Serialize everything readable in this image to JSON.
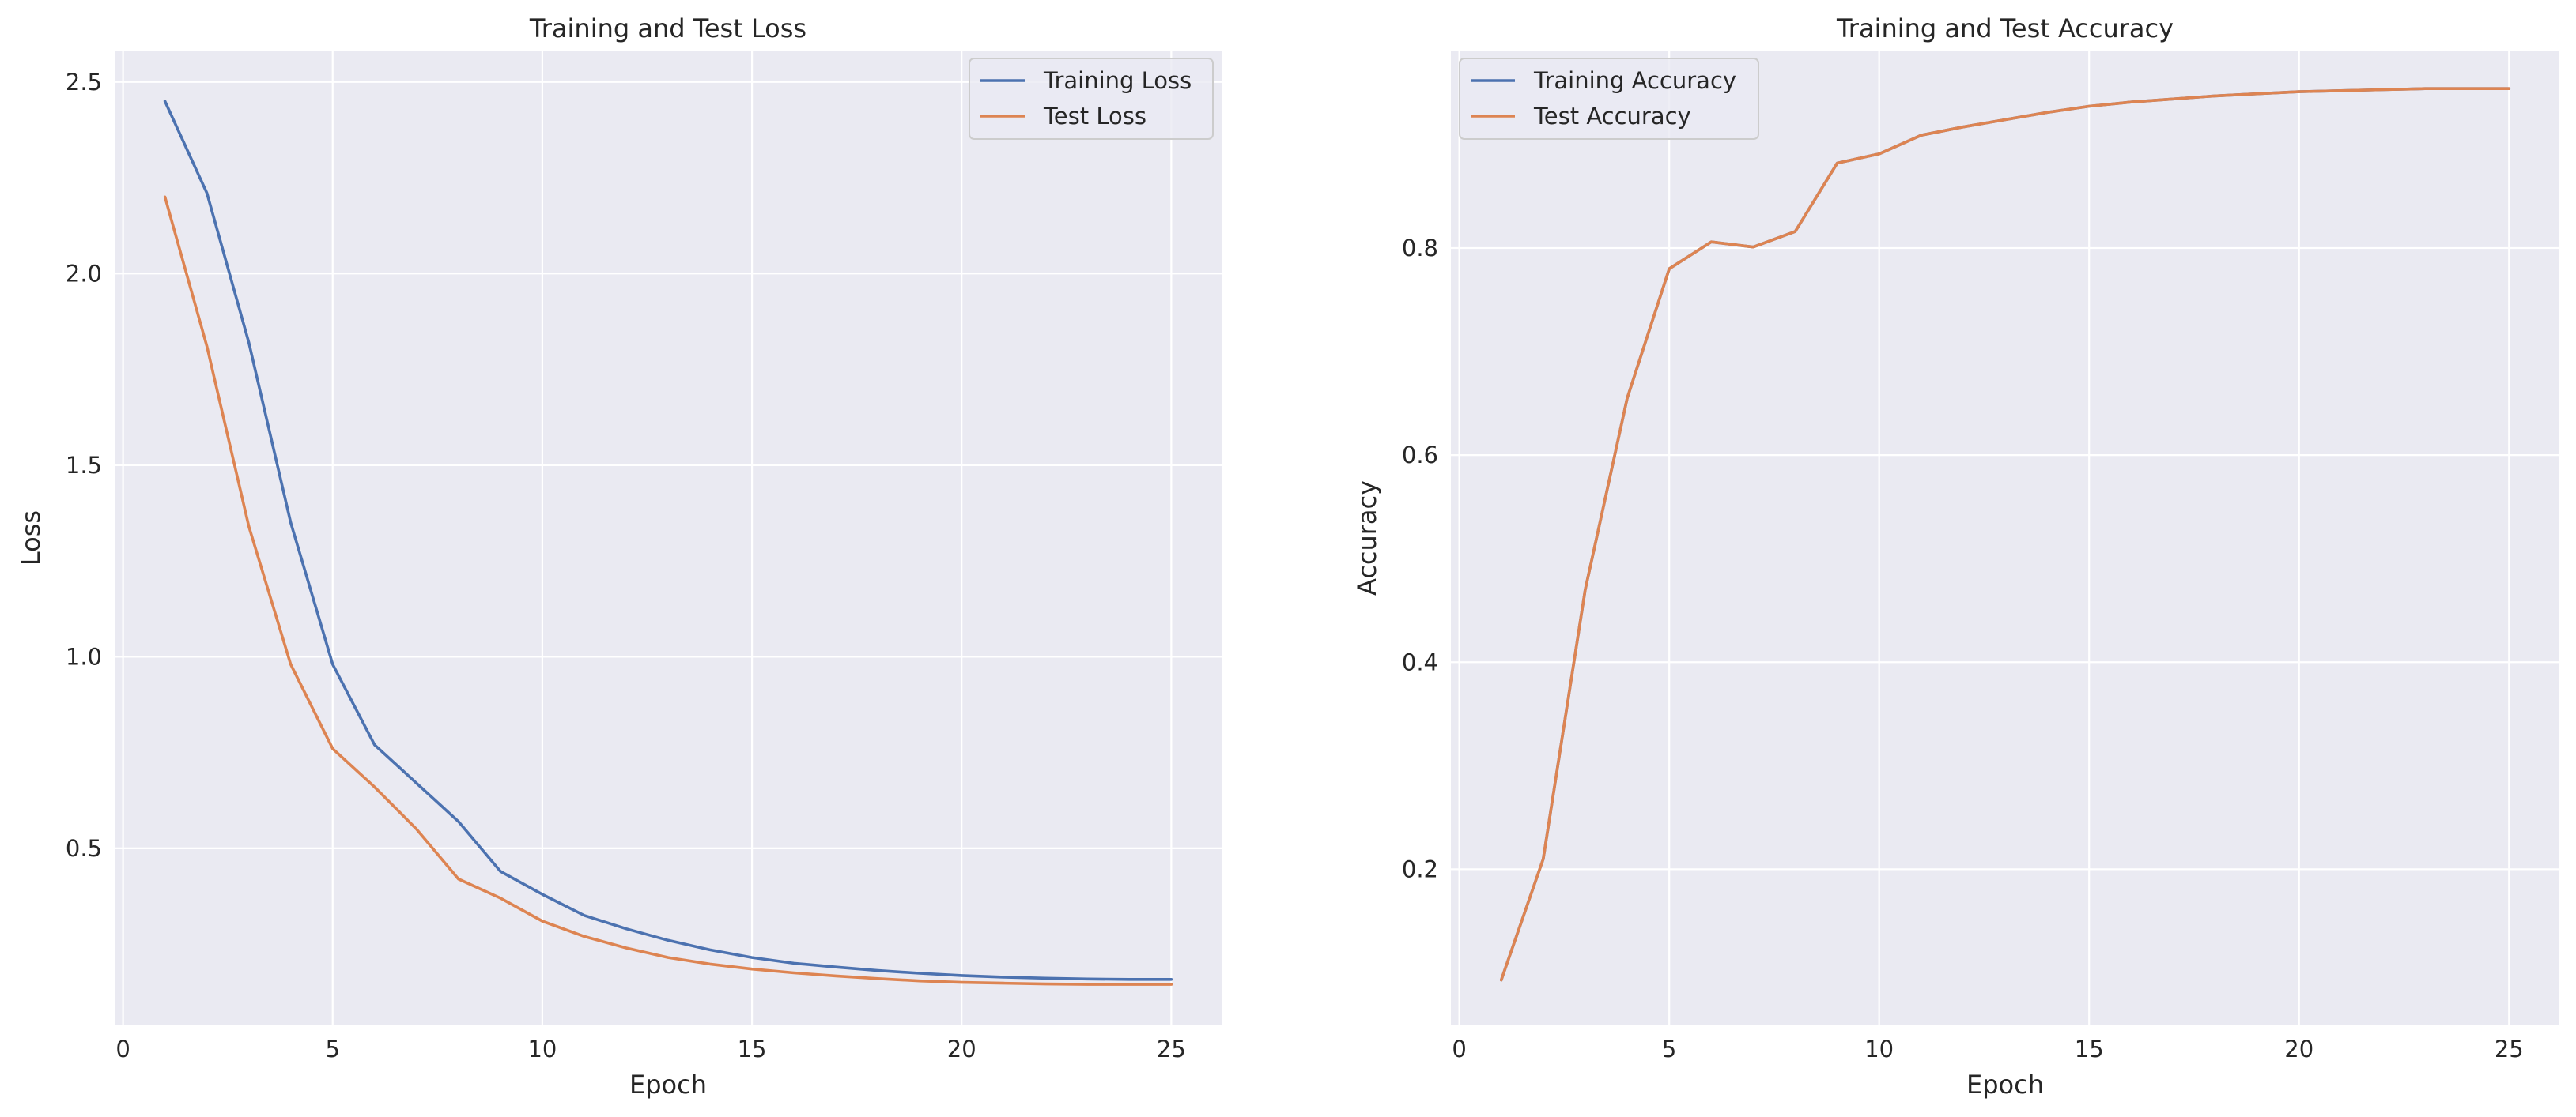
{
  "colors": {
    "background": "#eaeaf2",
    "grid": "#ffffff",
    "series_blue": "#4c72b0",
    "series_orange": "#dd8452",
    "text": "#262626"
  },
  "chart_data": [
    {
      "type": "line",
      "title": "Training and Test Loss",
      "xlabel": "Epoch",
      "ylabel": "Loss",
      "xlim": [
        -0.2,
        26.2
      ],
      "ylim": [
        0.04,
        2.58
      ],
      "xticks": [
        0,
        5,
        10,
        15,
        20,
        25
      ],
      "xtick_labels": [
        "0",
        "5",
        "10",
        "15",
        "20",
        "25"
      ],
      "yticks": [
        0.5,
        1.0,
        1.5,
        2.0,
        2.5
      ],
      "ytick_labels": [
        "0.5",
        "1.0",
        "1.5",
        "2.0",
        "2.5"
      ],
      "grid": true,
      "legend_position": "top-right",
      "x": [
        1,
        2,
        3,
        4,
        5,
        6,
        7,
        8,
        9,
        10,
        11,
        12,
        13,
        14,
        15,
        16,
        17,
        18,
        19,
        20,
        21,
        22,
        23,
        24,
        25
      ],
      "series": [
        {
          "name": "Training Loss",
          "color": "#4c72b0",
          "values": [
            2.45,
            2.21,
            1.82,
            1.35,
            0.98,
            0.77,
            0.67,
            0.57,
            0.44,
            0.38,
            0.325,
            0.29,
            0.26,
            0.235,
            0.215,
            0.2,
            0.19,
            0.181,
            0.174,
            0.168,
            0.164,
            0.161,
            0.159,
            0.158,
            0.158
          ]
        },
        {
          "name": "Test Loss",
          "color": "#dd8452",
          "values": [
            2.2,
            1.81,
            1.34,
            0.98,
            0.76,
            0.66,
            0.55,
            0.42,
            0.37,
            0.31,
            0.27,
            0.24,
            0.215,
            0.198,
            0.185,
            0.175,
            0.167,
            0.16,
            0.154,
            0.15,
            0.148,
            0.146,
            0.145,
            0.145,
            0.145
          ]
        }
      ]
    },
    {
      "type": "line",
      "title": "Training and Test Accuracy",
      "xlabel": "Epoch",
      "ylabel": "Accuracy",
      "xlim": [
        -0.2,
        26.2
      ],
      "ylim": [
        0.05,
        0.99
      ],
      "xticks": [
        0,
        5,
        10,
        15,
        20,
        25
      ],
      "xtick_labels": [
        "0",
        "5",
        "10",
        "15",
        "20",
        "25"
      ],
      "yticks": [
        0.2,
        0.4,
        0.6,
        0.8
      ],
      "ytick_labels": [
        "0.2",
        "0.4",
        "0.6",
        "0.8"
      ],
      "grid": true,
      "legend_position": "top-left",
      "x": [
        1,
        2,
        3,
        4,
        5,
        6,
        7,
        8,
        9,
        10,
        11,
        12,
        13,
        14,
        15,
        16,
        17,
        18,
        19,
        20,
        21,
        22,
        23,
        24,
        25
      ],
      "series": [
        {
          "name": "Training Accuracy",
          "color": "#4c72b0",
          "values": [
            0.093,
            0.21,
            0.47,
            0.655,
            0.78,
            0.806,
            0.801,
            0.816,
            0.882,
            0.891,
            0.909,
            0.917,
            0.924,
            0.931,
            0.937,
            0.941,
            0.944,
            0.947,
            0.949,
            0.951,
            0.952,
            0.953,
            0.954,
            0.954,
            0.954
          ]
        },
        {
          "name": "Test Accuracy",
          "color": "#dd8452",
          "values": [
            0.093,
            0.21,
            0.47,
            0.655,
            0.78,
            0.806,
            0.801,
            0.816,
            0.882,
            0.891,
            0.909,
            0.917,
            0.924,
            0.931,
            0.937,
            0.941,
            0.944,
            0.947,
            0.949,
            0.951,
            0.952,
            0.953,
            0.954,
            0.954,
            0.954
          ]
        }
      ]
    }
  ]
}
